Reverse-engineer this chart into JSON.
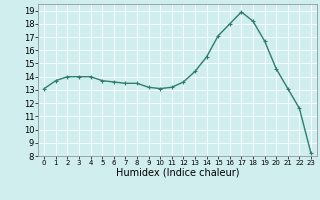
{
  "x": [
    0,
    1,
    2,
    3,
    4,
    5,
    6,
    7,
    8,
    9,
    10,
    11,
    12,
    13,
    14,
    15,
    16,
    17,
    18,
    19,
    20,
    21,
    22,
    23
  ],
  "y": [
    13.1,
    13.7,
    14.0,
    14.0,
    14.0,
    13.7,
    13.6,
    13.5,
    13.5,
    13.2,
    13.1,
    13.2,
    13.6,
    14.4,
    15.5,
    17.1,
    18.0,
    18.9,
    18.2,
    16.7,
    14.6,
    13.1,
    11.6,
    8.2
  ],
  "line_color": "#2e7d6e",
  "marker": "+",
  "marker_size": 3,
  "bg_color": "#d0eeee",
  "grid_color": "#ffffff",
  "xlabel": "Humidex (Indice chaleur)",
  "xlim": [
    -0.5,
    23.5
  ],
  "ylim": [
    8,
    19.5
  ],
  "yticks": [
    8,
    9,
    10,
    11,
    12,
    13,
    14,
    15,
    16,
    17,
    18,
    19
  ],
  "xticks": [
    0,
    1,
    2,
    3,
    4,
    5,
    6,
    7,
    8,
    9,
    10,
    11,
    12,
    13,
    14,
    15,
    16,
    17,
    18,
    19,
    20,
    21,
    22,
    23
  ],
  "xlabel_fontsize": 7,
  "tick_fontsize": 6,
  "linewidth": 1.0,
  "marker_color": "#2e7d6e"
}
